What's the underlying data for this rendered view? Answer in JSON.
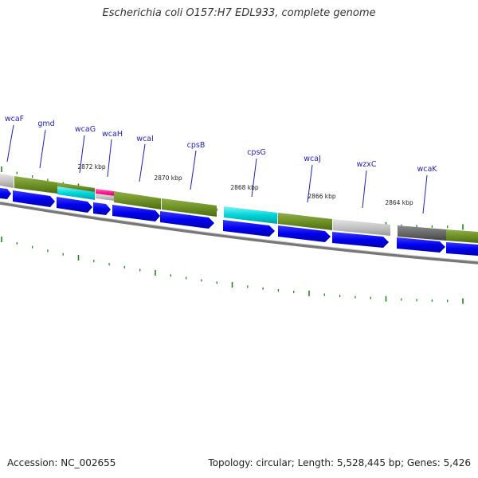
{
  "title": "Escherichia coli O157:H7 EDL933, complete genome",
  "footer": {
    "accession": "Accession: NC_002655",
    "summary": "Topology: circular; Length: 5,528,445 bp; Genes: 5,426"
  },
  "colors": {
    "background": "#ffffff",
    "forward_cds": "#0000ee",
    "function_olive": "#6b8e23",
    "function_cyan": "#00ced1",
    "function_light_gray": "#c0c0c0",
    "function_dark_gray": "#666666",
    "function_pink": "#ff1493",
    "tick_green": "#1a8a1a",
    "backbone": "#808080",
    "gene_label": "#1f1fb8"
  },
  "genes": [
    {
      "name": "wcaF"
    },
    {
      "name": "gmd"
    },
    {
      "name": "wcaG"
    },
    {
      "name": "wcaH"
    },
    {
      "name": "wcaI"
    },
    {
      "name": "cpsB"
    },
    {
      "name": "cpsG"
    },
    {
      "name": "wcaJ"
    },
    {
      "name": "wzxC"
    },
    {
      "name": "wcaK"
    }
  ],
  "kbp_labels": [
    "2872 kbp",
    "2870 kbp",
    "2868 kbp",
    "2866 kbp",
    "2864 kbp"
  ],
  "function_blocks": [
    {
      "color": "light_gray"
    },
    {
      "color": "olive"
    },
    {
      "color": "cyan"
    },
    {
      "color": "pink"
    },
    {
      "color": "olive"
    },
    {
      "color": "olive"
    },
    {
      "color": "cyan"
    },
    {
      "color": "olive"
    },
    {
      "color": "light_gray"
    },
    {
      "color": "dark_gray"
    },
    {
      "color": "olive"
    }
  ]
}
